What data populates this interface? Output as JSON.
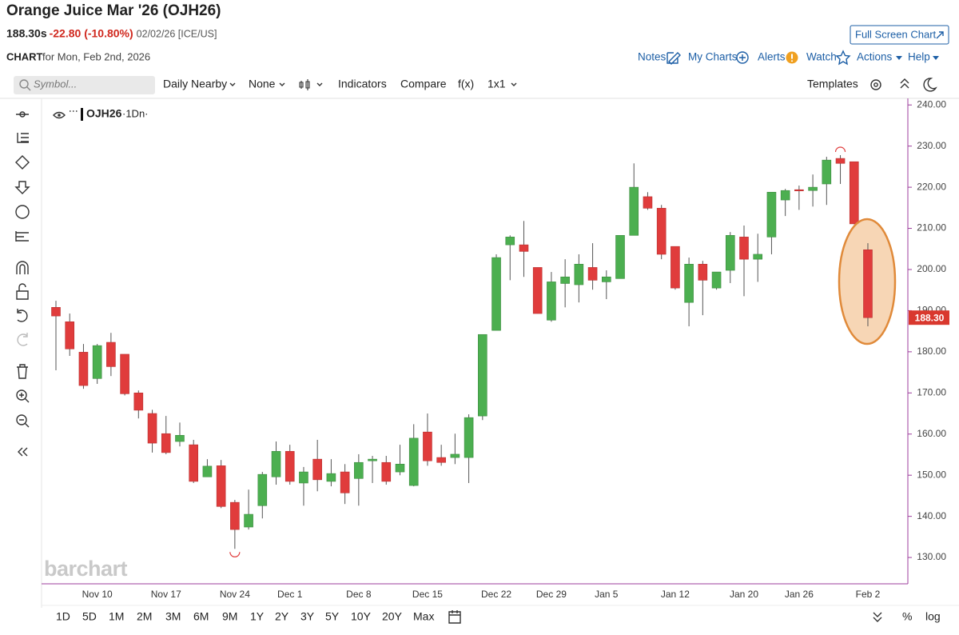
{
  "header": {
    "title": "Orange Juice Mar '26 (OJH26)",
    "last": "188.30s",
    "change": "-22.80 (-10.80%)",
    "date_exchange": "02/02/26 [ICE/US]",
    "chart_label": "CHART",
    "chart_date": "for Mon, Feb 2nd, 2026",
    "full_screen": "Full Screen Chart"
  },
  "nav": [
    "Notes",
    "My Charts",
    "Alerts",
    "Watch",
    "Actions",
    "Help"
  ],
  "toolbar": {
    "symbol_placeholder": "Symbol...",
    "items": [
      "Daily Nearby",
      "None",
      "Indicators",
      "Compare",
      "f(x)",
      "1x1"
    ],
    "templates": "Templates"
  },
  "legend": {
    "symbol": "OJH26",
    "interval": "·1Dn·"
  },
  "periods": [
    "1D",
    "5D",
    "1M",
    "2M",
    "3M",
    "6M",
    "9M",
    "1Y",
    "2Y",
    "3Y",
    "5Y",
    "10Y",
    "20Y",
    "Max"
  ],
  "scale_options": [
    "%",
    "log"
  ],
  "watermark": "barchart",
  "chart_data": {
    "type": "candlestick",
    "up_color": "#4caf50",
    "down_color": "#e03c3c",
    "categories": [
      null,
      null,
      null,
      "Nov 10",
      null,
      null,
      null,
      null,
      "Nov 17",
      null,
      null,
      null,
      null,
      "Nov 24",
      null,
      null,
      null,
      "Dec 1",
      null,
      null,
      null,
      null,
      "Dec 8",
      null,
      null,
      null,
      null,
      "Dec 15",
      null,
      null,
      null,
      null,
      "Dec 22",
      null,
      null,
      null,
      "Dec 29",
      null,
      null,
      null,
      "Jan 5",
      null,
      null,
      null,
      null,
      "Jan 12",
      null,
      null,
      null,
      null,
      "Jan 20",
      null,
      null,
      null,
      "Jan 26",
      null,
      null,
      null,
      null,
      "Feb 2"
    ],
    "open": [
      190.8,
      187.3,
      179.9,
      173.5,
      182.3,
      179.4,
      170.0,
      165.0,
      160.1,
      158.2,
      157.4,
      149.6,
      152.3,
      143.4,
      137.4,
      142.6,
      149.6,
      155.8,
      148.1,
      153.9,
      148.5,
      150.8,
      149.2,
      153.5,
      153.1,
      150.8,
      147.5,
      160.5,
      154.3,
      154.3,
      154.3,
      164.4,
      185.2,
      206.0,
      206.0,
      200.5,
      187.7,
      196.6,
      196.3,
      200.5,
      197.0,
      197.8,
      208.3,
      217.7,
      214.9,
      205.6,
      192.0,
      201.3,
      195.5,
      199.8,
      207.9,
      202.5,
      207.9,
      216.9,
      219.4,
      219.2,
      220.8,
      227.0,
      226.2,
      204.8
    ],
    "high": [
      192.4,
      189.3,
      181.9,
      181.9,
      184.6,
      179.4,
      170.6,
      165.9,
      164.4,
      162.8,
      158.6,
      153.9,
      153.7,
      144.0,
      146.5,
      150.8,
      158.2,
      157.4,
      152.0,
      158.6,
      153.9,
      152.7,
      155.1,
      154.7,
      154.7,
      157.4,
      162.4,
      165.0,
      157.4,
      160.1,
      164.8,
      184.2,
      203.7,
      208.3,
      211.8,
      200.5,
      199.4,
      202.5,
      203.7,
      206.4,
      199.8,
      208.3,
      225.8,
      218.8,
      215.7,
      205.6,
      202.9,
      202.1,
      199.4,
      209.1,
      210.7,
      208.7,
      218.8,
      219.6,
      220.4,
      223.1,
      227.4,
      227.8,
      226.2,
      206.4
    ],
    "low": [
      175.5,
      179.0,
      171.0,
      172.2,
      174.1,
      169.4,
      163.8,
      155.5,
      155.1,
      157.0,
      148.1,
      149.6,
      142.0,
      132.1,
      136.8,
      139.5,
      147.7,
      147.7,
      142.6,
      146.1,
      147.3,
      143.0,
      142.6,
      148.1,
      147.7,
      150.0,
      147.3,
      152.3,
      152.3,
      152.7,
      148.1,
      163.4,
      185.2,
      197.4,
      198.2,
      189.3,
      187.3,
      190.8,
      192.0,
      195.1,
      192.8,
      197.8,
      208.3,
      214.5,
      202.5,
      195.1,
      186.2,
      188.9,
      195.1,
      196.7,
      193.5,
      197.0,
      203.7,
      213.0,
      214.5,
      215.3,
      215.7,
      220.8,
      211.0,
      186.2
    ],
    "close": [
      188.7,
      180.7,
      171.8,
      181.5,
      176.4,
      169.8,
      165.8,
      157.8,
      155.5,
      159.7,
      148.5,
      152.2,
      142.4,
      136.8,
      140.5,
      150.2,
      155.8,
      148.5,
      150.8,
      148.9,
      150.4,
      145.7,
      153.1,
      153.9,
      148.5,
      152.7,
      159.0,
      153.5,
      153.1,
      155.1,
      164.0,
      184.2,
      202.9,
      207.9,
      204.4,
      189.3,
      197.0,
      198.2,
      201.3,
      197.4,
      198.2,
      208.3,
      220.0,
      214.9,
      203.7,
      195.5,
      201.3,
      197.4,
      199.4,
      208.3,
      202.5,
      203.7,
      218.8,
      219.2,
      219.2,
      220.0,
      226.6,
      225.8,
      211.1,
      188.3
    ],
    "last_price": {
      "value": 188.3,
      "label": "188.30"
    },
    "ylim": [
      123.6,
      241.6
    ],
    "yticks": [
      {
        "value": 130,
        "label": "130.00"
      },
      {
        "value": 140,
        "label": "140.00"
      },
      {
        "value": 150,
        "label": "150.00"
      },
      {
        "value": 160,
        "label": "160.00"
      },
      {
        "value": 170,
        "label": "170.00"
      },
      {
        "value": 180,
        "label": "180.00"
      },
      {
        "value": 190,
        "label": "190.00"
      },
      {
        "value": 200,
        "label": "200.00"
      },
      {
        "value": 210,
        "label": "210.00"
      },
      {
        "value": 220,
        "label": "220.00"
      },
      {
        "value": 230,
        "label": "230.00"
      },
      {
        "value": 240,
        "label": "240.00"
      }
    ],
    "grid": false
  }
}
